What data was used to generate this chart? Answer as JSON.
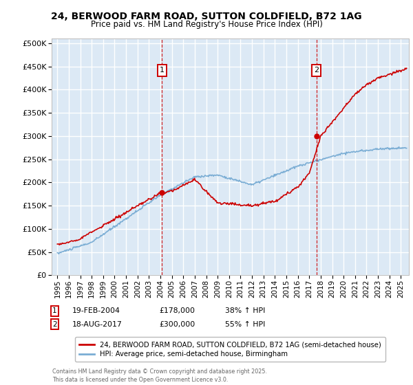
{
  "title_line1": "24, BERWOOD FARM ROAD, SUTTON COLDFIELD, B72 1AG",
  "title_line2": "Price paid vs. HM Land Registry's House Price Index (HPI)",
  "plot_bg_color": "#dce9f5",
  "grid_color": "#ffffff",
  "red_line_color": "#cc0000",
  "blue_line_color": "#7aadd4",
  "legend_label_red": "24, BERWOOD FARM ROAD, SUTTON COLDFIELD, B72 1AG (semi-detached house)",
  "legend_label_blue": "HPI: Average price, semi-detached house, Birmingham",
  "marker1_x": 2004.13,
  "marker1_y": 178000,
  "marker2_x": 2017.63,
  "marker2_y": 300000,
  "annotation1": [
    "1",
    "19-FEB-2004",
    "£178,000",
    "38% ↑ HPI"
  ],
  "annotation2": [
    "2",
    "18-AUG-2017",
    "£300,000",
    "55% ↑ HPI"
  ],
  "footer": "Contains HM Land Registry data © Crown copyright and database right 2025.\nThis data is licensed under the Open Government Licence v3.0.",
  "ylim": [
    0,
    510000
  ],
  "xlim": [
    1994.5,
    2025.7
  ],
  "yticks": [
    0,
    50000,
    100000,
    150000,
    200000,
    250000,
    300000,
    350000,
    400000,
    450000,
    500000
  ],
  "xticks": [
    1995,
    1996,
    1997,
    1998,
    1999,
    2000,
    2001,
    2002,
    2003,
    2004,
    2005,
    2006,
    2007,
    2008,
    2009,
    2010,
    2011,
    2012,
    2013,
    2014,
    2015,
    2016,
    2017,
    2018,
    2019,
    2020,
    2021,
    2022,
    2023,
    2024,
    2025
  ]
}
